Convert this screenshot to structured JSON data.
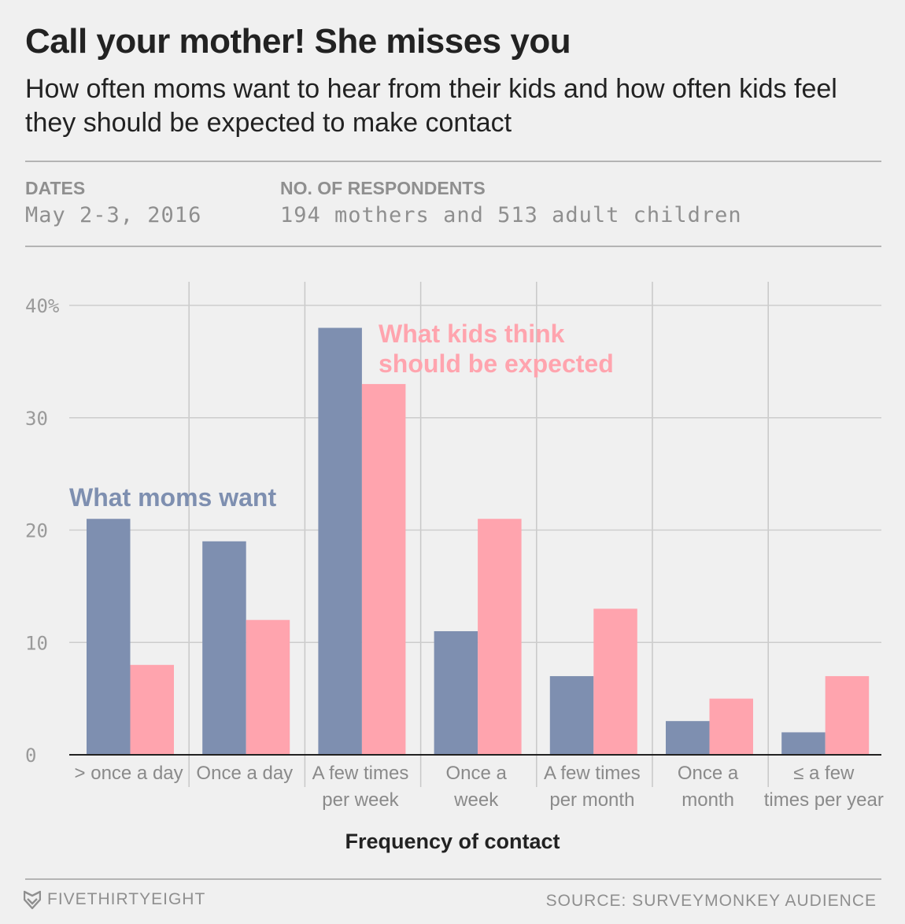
{
  "header": {
    "title": "Call your mother! She misses you",
    "subtitle": "How often moms want to hear from their kids and how often kids feel they should be expected to make contact"
  },
  "meta": {
    "dates_label": "DATES",
    "dates_value": "May 2-3, 2016",
    "respondents_label": "NO. OF RESPONDENTS",
    "respondents_value": "194 mothers and 513 adult children"
  },
  "footer": {
    "brand": "FIVETHIRTYEIGHT",
    "source": "SOURCE: SURVEYMONKEY AUDIENCE",
    "logo_icon": "fivethirtyeight-fox-icon"
  },
  "chart_data": {
    "type": "bar",
    "xlabel": "Frequency of contact",
    "ylabel": "",
    "ylim": [
      0,
      40
    ],
    "yticks": [
      0,
      10,
      20,
      30,
      40
    ],
    "ytick_labels": [
      "0",
      "10",
      "20",
      "30",
      "40%"
    ],
    "grid": true,
    "categories": [
      [
        "> once a day"
      ],
      [
        "Once a day"
      ],
      [
        "A few times",
        "per week"
      ],
      [
        "Once a",
        "week"
      ],
      [
        "A few times",
        "per month"
      ],
      [
        "Once a",
        "month"
      ],
      [
        "≤ a few",
        "times per year"
      ]
    ],
    "series": [
      {
        "name": "What moms want",
        "label_lines": [
          "What moms want"
        ],
        "color": "#7e8fb0",
        "values": [
          21,
          19,
          38,
          11,
          7,
          3,
          2
        ]
      },
      {
        "name": "What kids think should be expected",
        "label_lines": [
          "What kids think",
          "should be expected"
        ],
        "color": "#ffa4ae",
        "values": [
          8,
          12,
          33,
          21,
          13,
          5,
          7
        ]
      }
    ]
  }
}
